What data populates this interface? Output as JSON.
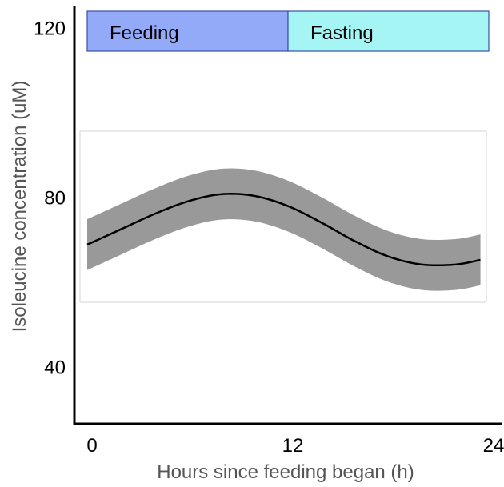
{
  "chart_data": {
    "type": "line",
    "title": "",
    "xlabel": "Hours since feeding began (h)",
    "ylabel": "Isoleucine concentration (uM)",
    "xlim": [
      0,
      24
    ],
    "ylim": [
      22,
      122
    ],
    "x_ticks": [
      "0",
      "12",
      "24"
    ],
    "y_ticks": [
      "40",
      "80",
      "120"
    ],
    "phases": [
      {
        "label": "Feeding",
        "start": 0,
        "end": 12,
        "color": "#93aaf9"
      },
      {
        "label": "Fasting",
        "start": 12,
        "end": 24,
        "color": "#a6f5f5"
      }
    ],
    "series": [
      {
        "x": [
          0,
          2,
          4,
          6,
          8,
          10,
          12,
          14,
          16,
          18,
          20,
          22,
          23.5
        ],
        "y": [
          69,
          72.6,
          76.2,
          79.2,
          80.9,
          80.5,
          78.1,
          74.2,
          69.8,
          66.2,
          64.3,
          64.3,
          65.4
        ],
        "band_halfwidth": 6,
        "line_color": "#000000",
        "band_color": "#999999"
      }
    ],
    "grid": false,
    "legend": "none"
  }
}
